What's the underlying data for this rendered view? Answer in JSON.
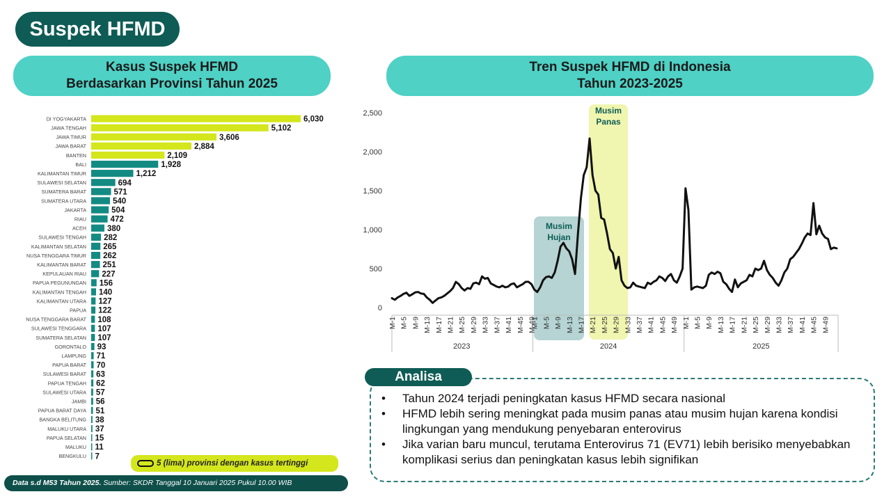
{
  "page_title": "Suspek HFMD",
  "left_panel": {
    "title_line1": "Kasus Suspek HFMD",
    "title_line2": "Berdasarkan Provinsi Tahun 2025"
  },
  "right_panel": {
    "title_line1": "Tren Suspek HFMD di Indonesia",
    "title_line2": "Tahun 2023-2025"
  },
  "legend": {
    "text": "5 (lima) provinsi dengan kasus tertinggi"
  },
  "footer": {
    "bold": "Data s.d M53 Tahun 2025.",
    "rest": " Sumber: SKDR Tanggal 10 Januari 2025 Pukul 10.00 WIB"
  },
  "analysis": {
    "label": "Analisa",
    "items": [
      "Tahun 2024 terjadi peningkatan kasus HFMD secara nasional",
      "HFMD lebih sering meningkat pada musim panas atau musim hujan karena kondisi lingkungan yang mendukung penyebaran enterovirus",
      "Jika varian baru muncul, terutama Enterovirus 71 (EV71) lebih berisiko menyebabkan komplikasi serius dan peningkatan kasus lebih signifikan"
    ]
  },
  "colors": {
    "highlight": "#d4e61c",
    "normal": "#138b83",
    "teal_dark": "#0e5c55",
    "teal_light": "#4fd1c5"
  },
  "chart_data": [
    {
      "type": "bar",
      "orientation": "horizontal",
      "categories": [
        "DI YOGYAKARTA",
        "JAWA TENGAH",
        "JAWA TIMUR",
        "JAWA BARAT",
        "BANTEN",
        "BALI",
        "KALIMANTAN TIMUR",
        "SULAWESI SELATAN",
        "SUMATERA BARAT",
        "SUMATERA UTARA",
        "JAKARTA",
        "RIAU",
        "ACEH",
        "SULAWESI TENGAH",
        "KALIMANTAN SELATAN",
        "NUSA TENGGARA TIMUR",
        "KALIMANTAN BARAT",
        "KEPULAUAN RIAU",
        "PAPUA PEGUNUNGAN",
        "KALIMANTAN TENGAH",
        "KALIMANTAN UTARA",
        "PAPUA",
        "NUSA TENGGARA BARAT",
        "SULAWESI TENGGARA",
        "SUMATERA SELATAN",
        "GORONTALO",
        "LAMPUNG",
        "PAPUA BARAT",
        "SULAWESI BARAT",
        "PAPUA TENGAH",
        "SULAWESI UTARA",
        "JAMBI",
        "PAPUA BARAT DAYA",
        "BANGKA BELITUNG",
        "MALUKU UTARA",
        "PAPUA SELATAN",
        "MALUKU",
        "BENGKULU"
      ],
      "values": [
        6030,
        5102,
        3606,
        2884,
        2109,
        1928,
        1212,
        694,
        571,
        540,
        504,
        472,
        380,
        282,
        265,
        262,
        251,
        227,
        156,
        140,
        127,
        122,
        108,
        107,
        107,
        93,
        71,
        70,
        63,
        62,
        57,
        56,
        51,
        38,
        37,
        15,
        11,
        7
      ],
      "value_labels": [
        "6,030",
        "5,102",
        "3,606",
        "2,884",
        "2,109",
        "1,928",
        "1,212",
        "694",
        "571",
        "540",
        "504",
        "472",
        "380",
        "282",
        "265",
        "262",
        "251",
        "227",
        "156",
        "140",
        "127",
        "122",
        "108",
        "107",
        "107",
        "93",
        "71",
        "70",
        "63",
        "62",
        "57",
        "56",
        "51",
        "38",
        "37",
        "15",
        "11",
        "7"
      ],
      "highlighted_count": 5
    },
    {
      "type": "line",
      "y_ticks": [
        "0",
        "500",
        "1,000",
        "1,500",
        "2,000",
        "2,500"
      ],
      "ylim": [
        0,
        2500
      ],
      "years": [
        {
          "label": "2023",
          "week_labels": [
            "M-1",
            "M-5",
            "M-9",
            "M-13",
            "M-17",
            "M-21",
            "M-25",
            "M-29",
            "M-33",
            "M-37",
            "M-41",
            "M-45",
            "M-49"
          ]
        },
        {
          "label": "2024",
          "week_labels": [
            "M-1",
            "M-5",
            "M-9",
            "M-13",
            "M-17",
            "M-21",
            "M-25",
            "M-29",
            "M-33",
            "M-37",
            "M-41",
            "M-45",
            "M-49"
          ]
        },
        {
          "label": "2025",
          "week_labels": [
            "M-1",
            "M-5",
            "M-9",
            "M-13",
            "M-17",
            "M-21",
            "M-25",
            "M-29",
            "M-33",
            "M-37",
            "M-41",
            "M-45",
            "M-49"
          ]
        }
      ],
      "values": [
        120,
        100,
        130,
        150,
        175,
        190,
        150,
        170,
        195,
        200,
        180,
        175,
        130,
        100,
        60,
        90,
        120,
        130,
        150,
        180,
        210,
        250,
        330,
        300,
        250,
        220,
        250,
        240,
        310,
        320,
        300,
        400,
        370,
        380,
        310,
        290,
        270,
        260,
        280,
        260,
        270,
        300,
        310,
        260,
        280,
        300,
        330,
        330,
        300,
        230,
        200,
        260,
        350,
        390,
        400,
        380,
        450,
        600,
        780,
        830,
        760,
        720,
        620,
        430,
        950,
        1400,
        1700,
        1800,
        2170,
        1700,
        1500,
        1450,
        1150,
        1130,
        950,
        750,
        700,
        500,
        650,
        350,
        280,
        250,
        260,
        320,
        280,
        270,
        260,
        250,
        320,
        300,
        330,
        350,
        400,
        380,
        340,
        400,
        430,
        350,
        320,
        400,
        500,
        1530,
        1250,
        230,
        260,
        270,
        260,
        250,
        280,
        420,
        450,
        430,
        460,
        440,
        330,
        300,
        240,
        200,
        360,
        260,
        310,
        330,
        350,
        420,
        400,
        500,
        480,
        500,
        600,
        480,
        420,
        380,
        320,
        280,
        350,
        450,
        500,
        620,
        650,
        700,
        750,
        820,
        900,
        950,
        930,
        1340,
        940,
        1050,
        950,
        900,
        880,
        750,
        770,
        760
      ]
    }
  ]
}
